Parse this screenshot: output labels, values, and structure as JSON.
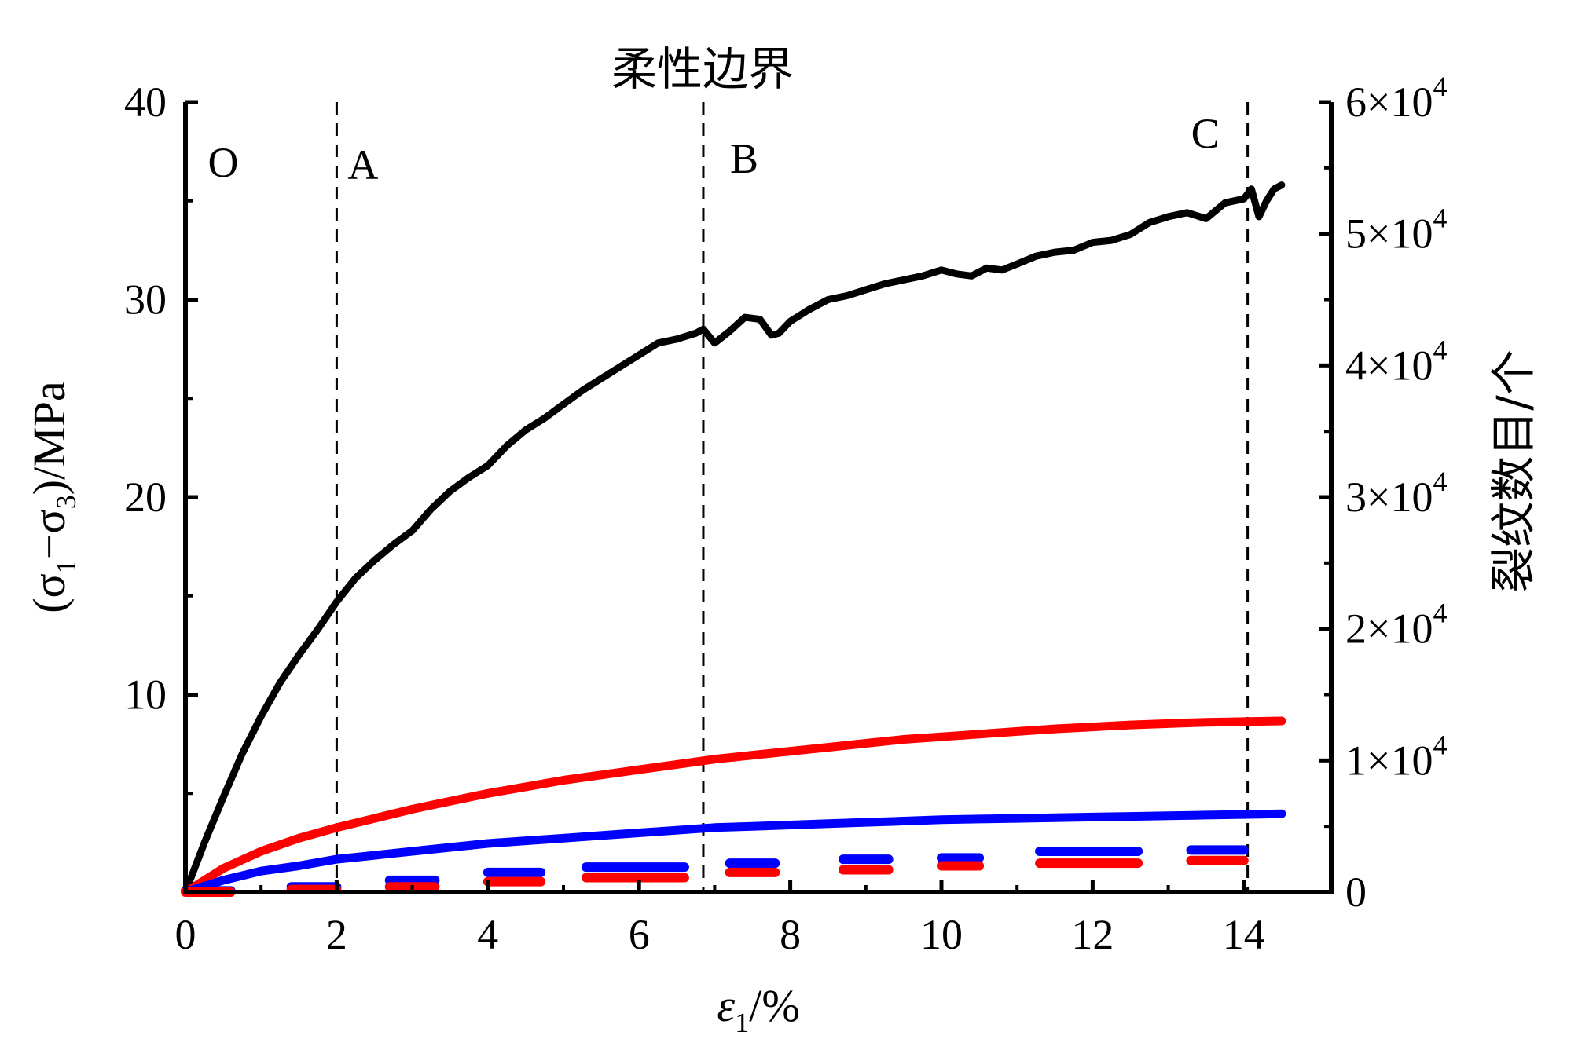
{
  "chart_data": {
    "type": "line",
    "title": "柔性边界",
    "xlabel": {
      "main": "ε",
      "sub": "1",
      "tail": "/%"
    },
    "ylabel_left": {
      "pre": "(σ",
      "sub1": "1",
      "mid": "−σ",
      "sub2": "3",
      "post": ")/MPa"
    },
    "ylabel_right": "裂纹数目/个",
    "xlim": [
      0,
      15
    ],
    "ylim_left": [
      0,
      40
    ],
    "ylim_right": [
      0,
      60000
    ],
    "x_ticks": [
      "0",
      "2",
      "4",
      "6",
      "8",
      "10",
      "12",
      "14"
    ],
    "y_left_ticks": [
      "10",
      "20",
      "30",
      "40"
    ],
    "y_right_ticks": [
      {
        "value": 10000,
        "mant": "1×10",
        "exp": "4"
      },
      {
        "value": 20000,
        "mant": "2×10",
        "exp": "4"
      },
      {
        "value": 30000,
        "mant": "3×10",
        "exp": "4"
      },
      {
        "value": 40000,
        "mant": "4×10",
        "exp": "4"
      },
      {
        "value": 50000,
        "mant": "5×10",
        "exp": "4"
      },
      {
        "value": 60000,
        "mant": "6×10",
        "exp": "4"
      }
    ],
    "y_right_zero": "0",
    "stage_markers": [
      {
        "label": "O",
        "x": 0.0,
        "line": false
      },
      {
        "label": "A",
        "x": 2.0,
        "line": true
      },
      {
        "label": "B",
        "x": 6.85,
        "line": true
      },
      {
        "label": "C",
        "x": 14.05,
        "line": true
      }
    ],
    "series": [
      {
        "axis": "left",
        "color": "#000000",
        "style": "solid",
        "x": [
          0,
          0.25,
          0.5,
          0.75,
          1.0,
          1.25,
          1.5,
          1.75,
          2.0,
          2.25,
          2.5,
          2.75,
          3.0,
          3.25,
          3.5,
          3.75,
          4.0,
          4.25,
          4.5,
          4.75,
          5.0,
          5.25,
          5.5,
          5.75,
          6.0,
          6.25,
          6.5,
          6.75,
          6.85,
          7.0,
          7.2,
          7.4,
          7.6,
          7.75,
          7.85,
          8.0,
          8.25,
          8.5,
          8.75,
          9.0,
          9.25,
          9.5,
          9.75,
          10.0,
          10.2,
          10.4,
          10.6,
          10.8,
          11.0,
          11.25,
          11.5,
          11.75,
          12.0,
          12.25,
          12.5,
          12.75,
          13.0,
          13.25,
          13.5,
          13.75,
          14.0,
          14.1,
          14.2,
          14.3,
          14.4,
          14.5
        ],
        "y": [
          0,
          2.5,
          4.8,
          7.0,
          8.9,
          10.6,
          12.0,
          13.3,
          14.7,
          15.9,
          16.8,
          17.6,
          18.3,
          19.4,
          20.3,
          21.0,
          21.6,
          22.6,
          23.4,
          24.0,
          24.7,
          25.4,
          26.0,
          26.6,
          27.2,
          27.8,
          28.0,
          28.3,
          28.5,
          27.8,
          28.4,
          29.1,
          29.0,
          28.2,
          28.3,
          28.9,
          29.5,
          30.0,
          30.2,
          30.5,
          30.8,
          31.0,
          31.2,
          31.5,
          31.3,
          31.2,
          31.6,
          31.5,
          31.8,
          32.2,
          32.4,
          32.5,
          32.9,
          33.0,
          33.3,
          33.9,
          34.2,
          34.4,
          34.1,
          34.9,
          35.1,
          35.6,
          34.2,
          35.0,
          35.6,
          35.8
        ]
      },
      {
        "axis": "right",
        "color": "#ff0000",
        "style": "solid",
        "x": [
          0,
          0.5,
          1.0,
          1.5,
          2.0,
          2.5,
          3.0,
          3.5,
          4.0,
          4.5,
          5.0,
          5.5,
          6.0,
          6.5,
          7.0,
          7.5,
          8.0,
          8.5,
          9.0,
          9.5,
          10.0,
          10.5,
          11.0,
          11.5,
          12.0,
          12.5,
          13.0,
          13.5,
          14.0,
          14.5
        ],
        "y": [
          0,
          1800,
          3100,
          4100,
          4900,
          5600,
          6300,
          6900,
          7500,
          8000,
          8500,
          8900,
          9300,
          9700,
          10100,
          10400,
          10700,
          11000,
          11300,
          11600,
          11800,
          12000,
          12200,
          12400,
          12550,
          12700,
          12800,
          12900,
          12950,
          13000
        ]
      },
      {
        "axis": "right",
        "color": "#0000ff",
        "style": "solid",
        "x": [
          0,
          0.5,
          1.0,
          1.5,
          2.0,
          2.5,
          3.0,
          3.5,
          4.0,
          4.5,
          5.0,
          5.5,
          6.0,
          6.5,
          7.0,
          7.5,
          8.0,
          8.5,
          9.0,
          9.5,
          10.0,
          10.5,
          11.0,
          11.5,
          12.0,
          12.5,
          13.0,
          13.5,
          14.0,
          14.5
        ],
        "y": [
          0,
          900,
          1600,
          2000,
          2500,
          2800,
          3100,
          3400,
          3700,
          3900,
          4100,
          4300,
          4500,
          4700,
          4900,
          5000,
          5100,
          5200,
          5300,
          5400,
          5500,
          5550,
          5600,
          5650,
          5700,
          5750,
          5800,
          5850,
          5900,
          5950
        ]
      },
      {
        "axis": "right",
        "color": "#0000ff",
        "style": "dashed",
        "segments": [
          {
            "x": [
              0.0,
              0.6
            ],
            "y": 100
          },
          {
            "x": [
              1.4,
              2.0
            ],
            "y": 400
          },
          {
            "x": [
              2.7,
              3.3
            ],
            "y": 900
          },
          {
            "x": [
              4.0,
              4.7
            ],
            "y": 1500
          },
          {
            "x": [
              5.3,
              6.6
            ],
            "y": 1900
          },
          {
            "x": [
              7.2,
              7.8
            ],
            "y": 2200
          },
          {
            "x": [
              8.7,
              9.3
            ],
            "y": 2500
          },
          {
            "x": [
              10.0,
              10.5
            ],
            "y": 2600
          },
          {
            "x": [
              11.3,
              12.6
            ],
            "y": 3100
          },
          {
            "x": [
              13.3,
              14.0
            ],
            "y": 3200
          }
        ]
      },
      {
        "axis": "right",
        "color": "#ff0000",
        "style": "dashed",
        "segments": [
          {
            "x": [
              0.0,
              0.6
            ],
            "y": 0
          },
          {
            "x": [
              1.4,
              2.0
            ],
            "y": 200
          },
          {
            "x": [
              2.7,
              3.3
            ],
            "y": 400
          },
          {
            "x": [
              4.0,
              4.7
            ],
            "y": 800
          },
          {
            "x": [
              5.3,
              6.6
            ],
            "y": 1100
          },
          {
            "x": [
              7.2,
              7.8
            ],
            "y": 1500
          },
          {
            "x": [
              8.7,
              9.3
            ],
            "y": 1700
          },
          {
            "x": [
              10.0,
              10.5
            ],
            "y": 2000
          },
          {
            "x": [
              11.3,
              12.6
            ],
            "y": 2200
          },
          {
            "x": [
              13.3,
              14.0
            ],
            "y": 2400
          }
        ]
      }
    ],
    "grid": false,
    "legend": "none"
  }
}
